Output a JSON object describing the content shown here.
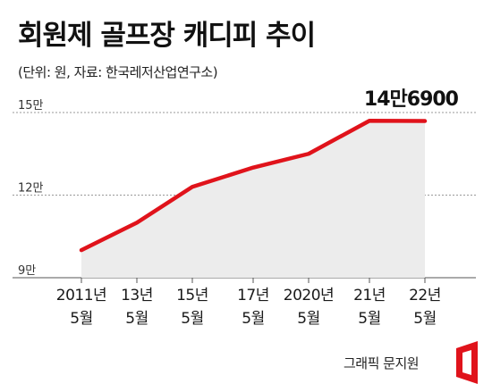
{
  "chart_title": "회원제 골프장 캐디피 추이",
  "chart_subtitle": "(단위: 원, 자료: 한국레저산업연구소)",
  "credit": "그래픽 문지원",
  "colors": {
    "line": "#e0131b",
    "area": "#ececec",
    "grid": "#999999",
    "logo": "#e0131b"
  },
  "chart_data": {
    "type": "area",
    "x_line1": [
      "2011년",
      "13년",
      "15년",
      "17년",
      "2020년",
      "21년",
      "22년"
    ],
    "x_line2": [
      "5월",
      "5월",
      "5월",
      "5월",
      "5월",
      "5월",
      "5월"
    ],
    "values": [
      100000,
      110000,
      123000,
      130000,
      135000,
      147000,
      146900
    ],
    "y_ticks": [
      {
        "value": 90000,
        "label": "9만"
      },
      {
        "value": 120000,
        "label": "12만"
      },
      {
        "value": 150000,
        "label": "15만"
      }
    ],
    "ylim": [
      90000,
      150000
    ],
    "annotation": {
      "index": 6,
      "label": "14만6900"
    }
  }
}
